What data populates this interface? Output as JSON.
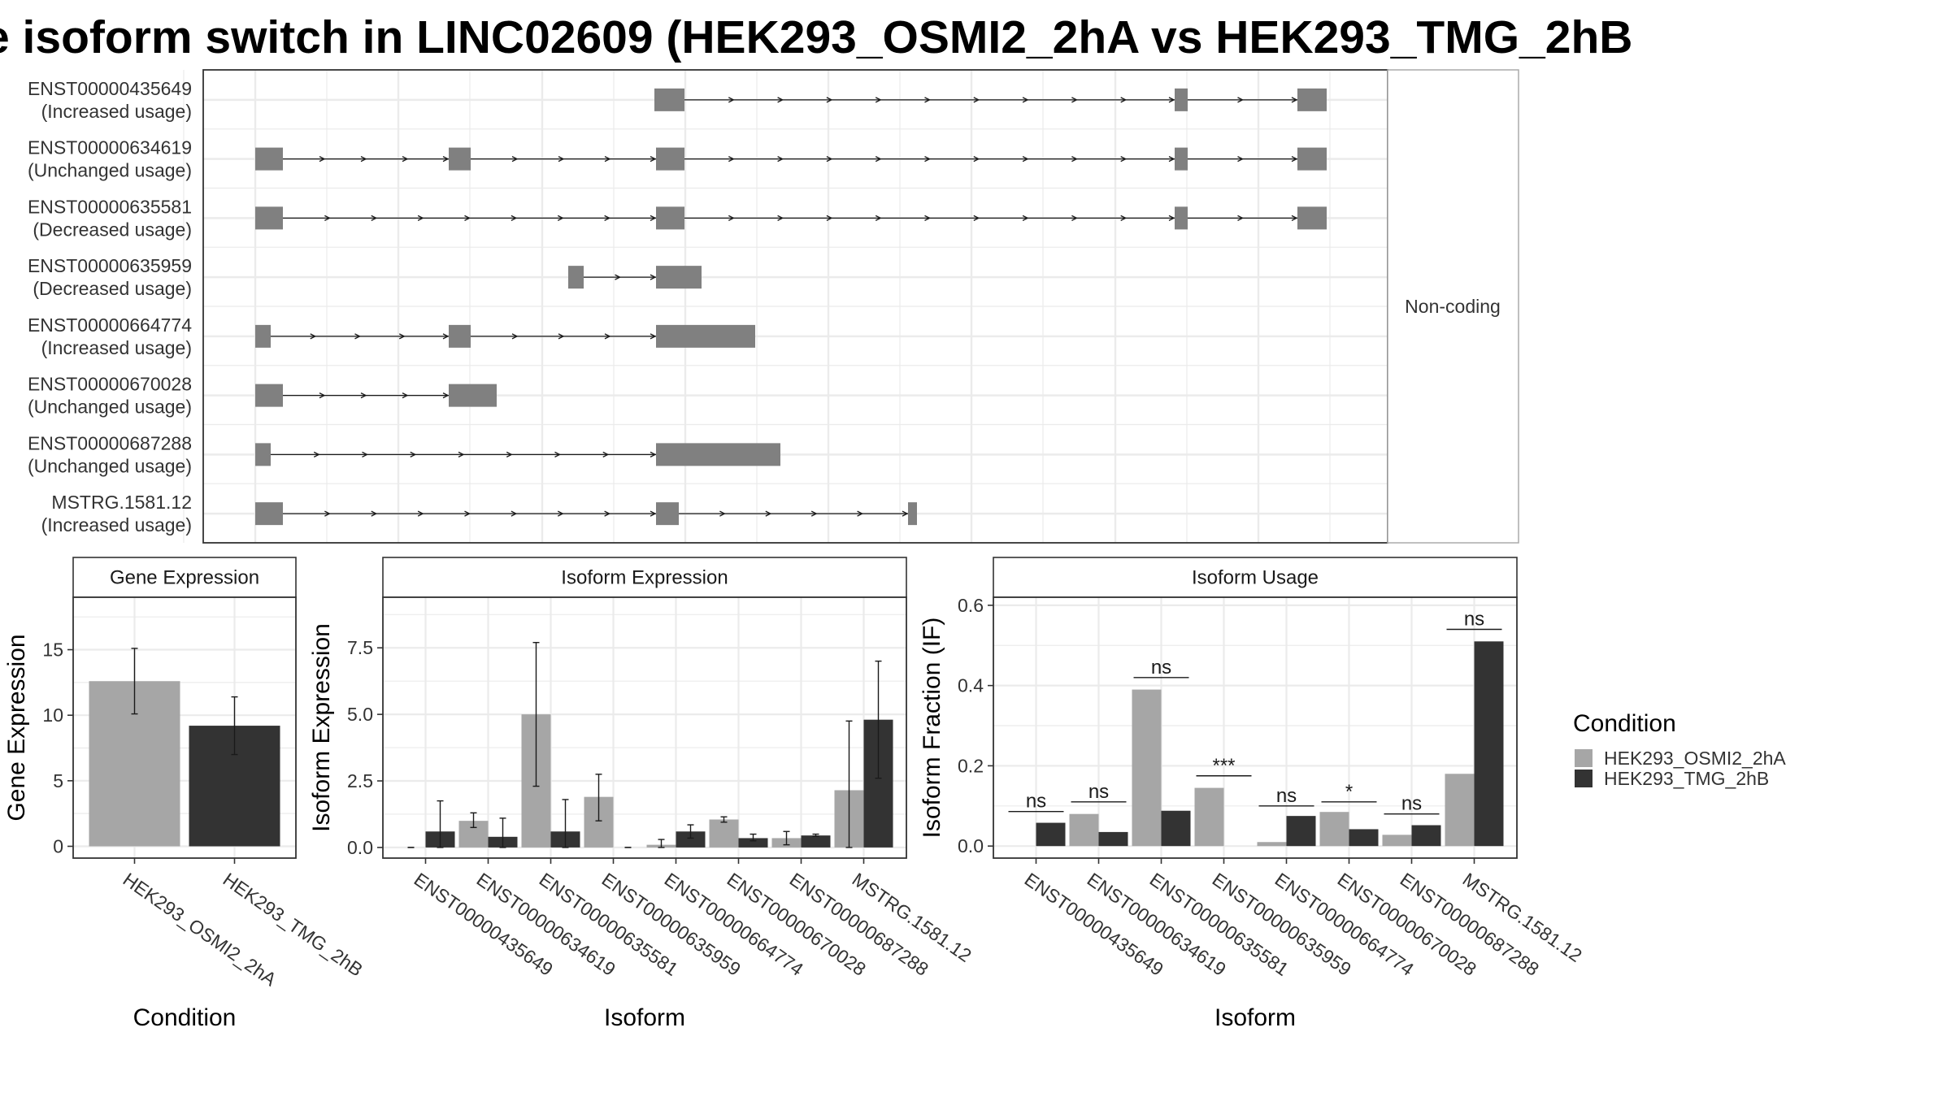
{
  "title": "e isoform switch in LINC02609 (HEK293_OSMI2_2hA vs HEK293_TMG_2hB",
  "chart_data": [
    {
      "type": "transcript-structure",
      "facet_label": "Non-coding",
      "transcripts": [
        {
          "id": "ENST00000435649",
          "status": "(Increased usage)",
          "exons": [
            [
              805,
              842
            ],
            [
              1445,
              1461
            ],
            [
              1596,
              1632
            ]
          ],
          "introns": [
            [
              842,
              1445
            ],
            [
              1461,
              1596
            ]
          ]
        },
        {
          "id": "ENST00000634619",
          "status": "(Unchanged usage)",
          "exons": [
            [
              314,
              348
            ],
            [
              552,
              579
            ],
            [
              807,
              842
            ],
            [
              1445,
              1461
            ],
            [
              1596,
              1632
            ]
          ],
          "introns": [
            [
              348,
              552
            ],
            [
              579,
              807
            ],
            [
              842,
              1445
            ],
            [
              1461,
              1596
            ]
          ]
        },
        {
          "id": "ENST00000635581",
          "status": "(Decreased usage)",
          "exons": [
            [
              314,
              348
            ],
            [
              807,
              842
            ],
            [
              1445,
              1461
            ],
            [
              1596,
              1632
            ]
          ],
          "introns": [
            [
              348,
              807
            ],
            [
              842,
              1445
            ],
            [
              1461,
              1596
            ]
          ]
        },
        {
          "id": "ENST00000635959",
          "status": "(Decreased usage)",
          "exons": [
            [
              699,
              718
            ],
            [
              807,
              863
            ]
          ],
          "introns": [
            [
              718,
              807
            ]
          ]
        },
        {
          "id": "ENST00000664774",
          "status": "(Increased usage)",
          "exons": [
            [
              314,
              333
            ],
            [
              552,
              579
            ],
            [
              807,
              929
            ]
          ],
          "introns": [
            [
              333,
              552
            ],
            [
              579,
              807
            ]
          ]
        },
        {
          "id": "ENST00000670028",
          "status": "(Unchanged usage)",
          "exons": [
            [
              314,
              348
            ],
            [
              552,
              611
            ]
          ],
          "introns": [
            [
              348,
              552
            ]
          ]
        },
        {
          "id": "ENST00000687288",
          "status": "(Unchanged usage)",
          "exons": [
            [
              314,
              333
            ],
            [
              807,
              960
            ]
          ],
          "introns": [
            [
              333,
              807
            ]
          ]
        },
        {
          "id": "MSTRG.1581.12",
          "status": "(Increased usage)",
          "exons": [
            [
              314,
              348
            ],
            [
              807,
              835
            ],
            [
              1117,
              1128
            ]
          ],
          "introns": [
            [
              348,
              807
            ],
            [
              835,
              1117
            ]
          ]
        }
      ]
    },
    {
      "type": "bar",
      "title": "Gene Expression",
      "xlabel": "Condition",
      "ylabel": "Gene Expression",
      "ylim": [
        -0.9,
        19
      ],
      "yticks": [
        0,
        5,
        10,
        15
      ],
      "categories": [
        "HEK293_OSMI2_2hA",
        "HEK293_TMG_2hB"
      ],
      "values": [
        12.6,
        9.2
      ],
      "errors": [
        [
          10.1,
          15.1
        ],
        [
          7.0,
          11.4
        ]
      ]
    },
    {
      "type": "bar",
      "title": "Isoform Expression",
      "xlabel": "Isoform",
      "ylabel": "Isoform Expression",
      "ylim": [
        -0.4,
        9.4
      ],
      "yticks": [
        0.0,
        2.5,
        5.0,
        7.5
      ],
      "ytick_labels": [
        "0.0",
        "2.5",
        "5.0",
        "7.5"
      ],
      "categories": [
        "ENST00000435649",
        "ENST00000634619",
        "ENST00000635581",
        "ENST00000635959",
        "ENST00000664774",
        "ENST00000670028",
        "ENST00000687288",
        "MSTRG.1581.12"
      ],
      "series": [
        {
          "name": "HEK293_OSMI2_2hA",
          "values": [
            0.0,
            1.0,
            5.0,
            1.9,
            0.1,
            1.05,
            0.35,
            2.15
          ],
          "errors": [
            [
              0.0,
              0.0
            ],
            [
              0.75,
              1.3
            ],
            [
              2.3,
              7.7
            ],
            [
              1.0,
              2.75
            ],
            [
              0.0,
              0.3
            ],
            [
              0.95,
              1.15
            ],
            [
              0.1,
              0.6
            ],
            [
              0.0,
              4.75
            ]
          ]
        },
        {
          "name": "HEK293_TMG_2hB",
          "values": [
            0.6,
            0.4,
            0.6,
            0.0,
            0.6,
            0.35,
            0.45,
            4.8
          ],
          "errors": [
            [
              0.0,
              1.75
            ],
            [
              0.0,
              1.1
            ],
            [
              0.0,
              1.8
            ],
            [
              0.0,
              0.0
            ],
            [
              0.35,
              0.85
            ],
            [
              0.25,
              0.5
            ],
            [
              0.42,
              0.5
            ],
            [
              2.6,
              7.0
            ]
          ]
        }
      ]
    },
    {
      "type": "bar",
      "title": "Isoform Usage",
      "xlabel": "Isoform",
      "ylabel": "Isoform Fraction (IF)",
      "ylim": [
        -0.03,
        0.62
      ],
      "yticks": [
        0.0,
        0.2,
        0.4,
        0.6
      ],
      "ytick_labels": [
        "0.0",
        "0.2",
        "0.4",
        "0.6"
      ],
      "categories": [
        "ENST00000435649",
        "ENST00000634619",
        "ENST00000635581",
        "ENST00000635959",
        "ENST00000664774",
        "ENST00000670028",
        "ENST00000687288",
        "MSTRG.1581.12"
      ],
      "series": [
        {
          "name": "HEK293_OSMI2_2hA",
          "values": [
            0.0,
            0.08,
            0.39,
            0.145,
            0.01,
            0.085,
            0.028,
            0.18
          ]
        },
        {
          "name": "HEK293_TMG_2hB",
          "values": [
            0.058,
            0.035,
            0.088,
            0.0,
            0.075,
            0.042,
            0.052,
            0.51
          ]
        }
      ],
      "annotations": [
        {
          "label": "ns",
          "y": 0.086
        },
        {
          "label": "ns",
          "y": 0.11
        },
        {
          "label": "ns",
          "y": 0.42
        },
        {
          "label": "***",
          "y": 0.175
        },
        {
          "label": "ns",
          "y": 0.1
        },
        {
          "label": "*",
          "y": 0.11
        },
        {
          "label": "ns",
          "y": 0.08
        },
        {
          "label": "ns",
          "y": 0.54
        }
      ]
    }
  ],
  "legend": {
    "title": "Condition",
    "entries": [
      {
        "label": "HEK293_OSMI2_2hA",
        "color": "#a6a6a6"
      },
      {
        "label": "HEK293_TMG_2hB",
        "color": "#333333"
      }
    ]
  },
  "colors": {
    "exon": "#808080",
    "light_bar": "#a6a6a6",
    "dark_bar": "#333333",
    "grid": "#ebebeb"
  }
}
